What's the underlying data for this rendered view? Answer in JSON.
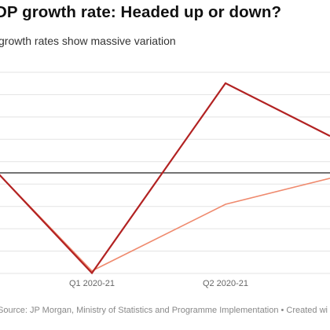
{
  "title": "DP growth rate: Headed up or down?",
  "subtitle": "growth rates show massive variation",
  "source": "Source: JP Morgan, Ministry of Statistics and Programme Implementation • Created wi",
  "colors": {
    "series_dark": "#b22222",
    "series_light": "#ef8a6e",
    "zero_line": "#222222",
    "grid": "#e3e3e3",
    "tick_text": "#666666"
  },
  "chart_data": {
    "type": "line",
    "x": [
      0,
      1,
      2,
      3
    ],
    "tick_labels": [
      "Q1 2020-21",
      "Q2 2020-21"
    ],
    "ylim": [
      -24,
      24
    ],
    "grid": true,
    "series": [
      {
        "color": "#b22222",
        "values": [
          0,
          -23.9,
          21.4,
          8.8
        ]
      },
      {
        "color": "#ef8a6e",
        "values": [
          0,
          -23.4,
          -7.5,
          -1.3
        ]
      }
    ]
  }
}
